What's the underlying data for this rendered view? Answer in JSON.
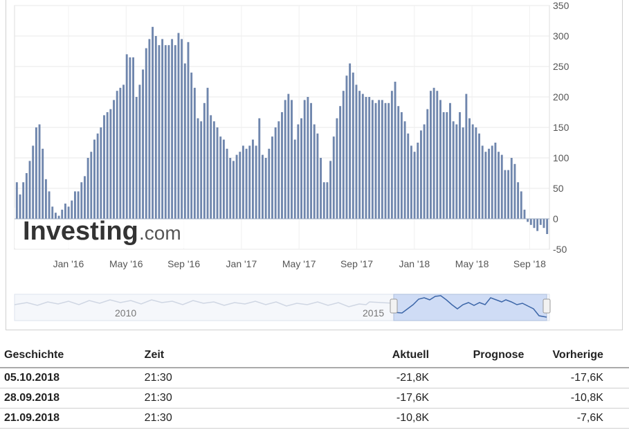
{
  "brand": {
    "name": "Investing",
    "suffix": ".com"
  },
  "chart_data": {
    "type": "bar",
    "x_tick_labels": [
      "Jan '16",
      "May '16",
      "Sep '16",
      "Jan '17",
      "May '17",
      "Sep '17",
      "Jan '18",
      "May '18",
      "Sep '18"
    ],
    "y_tick_labels": [
      "350",
      "300",
      "250",
      "200",
      "150",
      "100",
      "50",
      "0",
      "-50"
    ],
    "ylim": [
      -50,
      350
    ],
    "grid": true,
    "y_axis_side": "right",
    "bar_color": "#6f86ad",
    "values": [
      60,
      40,
      60,
      75,
      95,
      120,
      150,
      155,
      115,
      65,
      45,
      20,
      10,
      5,
      15,
      25,
      20,
      30,
      45,
      45,
      60,
      70,
      100,
      110,
      130,
      140,
      150,
      170,
      175,
      180,
      195,
      210,
      215,
      220,
      270,
      265,
      265,
      200,
      220,
      245,
      280,
      295,
      315,
      300,
      285,
      295,
      285,
      285,
      295,
      285,
      305,
      295,
      255,
      290,
      240,
      215,
      165,
      160,
      190,
      215,
      170,
      160,
      150,
      135,
      130,
      115,
      100,
      95,
      105,
      110,
      120,
      115,
      120,
      130,
      120,
      165,
      105,
      100,
      115,
      135,
      150,
      160,
      175,
      195,
      205,
      195,
      130,
      155,
      165,
      195,
      200,
      190,
      155,
      140,
      100,
      60,
      60,
      95,
      135,
      165,
      185,
      210,
      235,
      255,
      240,
      220,
      210,
      205,
      200,
      200,
      195,
      190,
      195,
      195,
      190,
      190,
      210,
      225,
      185,
      175,
      160,
      140,
      120,
      110,
      125,
      145,
      155,
      180,
      210,
      215,
      210,
      195,
      175,
      175,
      190,
      160,
      155,
      175,
      150,
      205,
      165,
      155,
      150,
      140,
      120,
      110,
      115,
      120,
      125,
      110,
      105,
      80,
      80,
      100,
      90,
      60,
      45,
      15,
      -5,
      -10,
      -15,
      -20,
      -10,
      -15,
      -25
    ],
    "navigator": {
      "labels": [
        "2010",
        "2015"
      ]
    }
  },
  "table": {
    "headers": {
      "history": "Geschichte",
      "time": "Zeit",
      "actual": "Aktuell",
      "forecast": "Prognose",
      "previous": "Vorherige"
    },
    "rows": [
      {
        "date": "05.10.2018",
        "time": "21:30",
        "actual": "-21,8K",
        "forecast": "",
        "previous": "-17,6K"
      },
      {
        "date": "28.09.2018",
        "time": "21:30",
        "actual": "-17,6K",
        "forecast": "",
        "previous": "-10,8K"
      },
      {
        "date": "21.09.2018",
        "time": "21:30",
        "actual": "-10,8K",
        "forecast": "",
        "previous": "-7,6K"
      }
    ]
  }
}
